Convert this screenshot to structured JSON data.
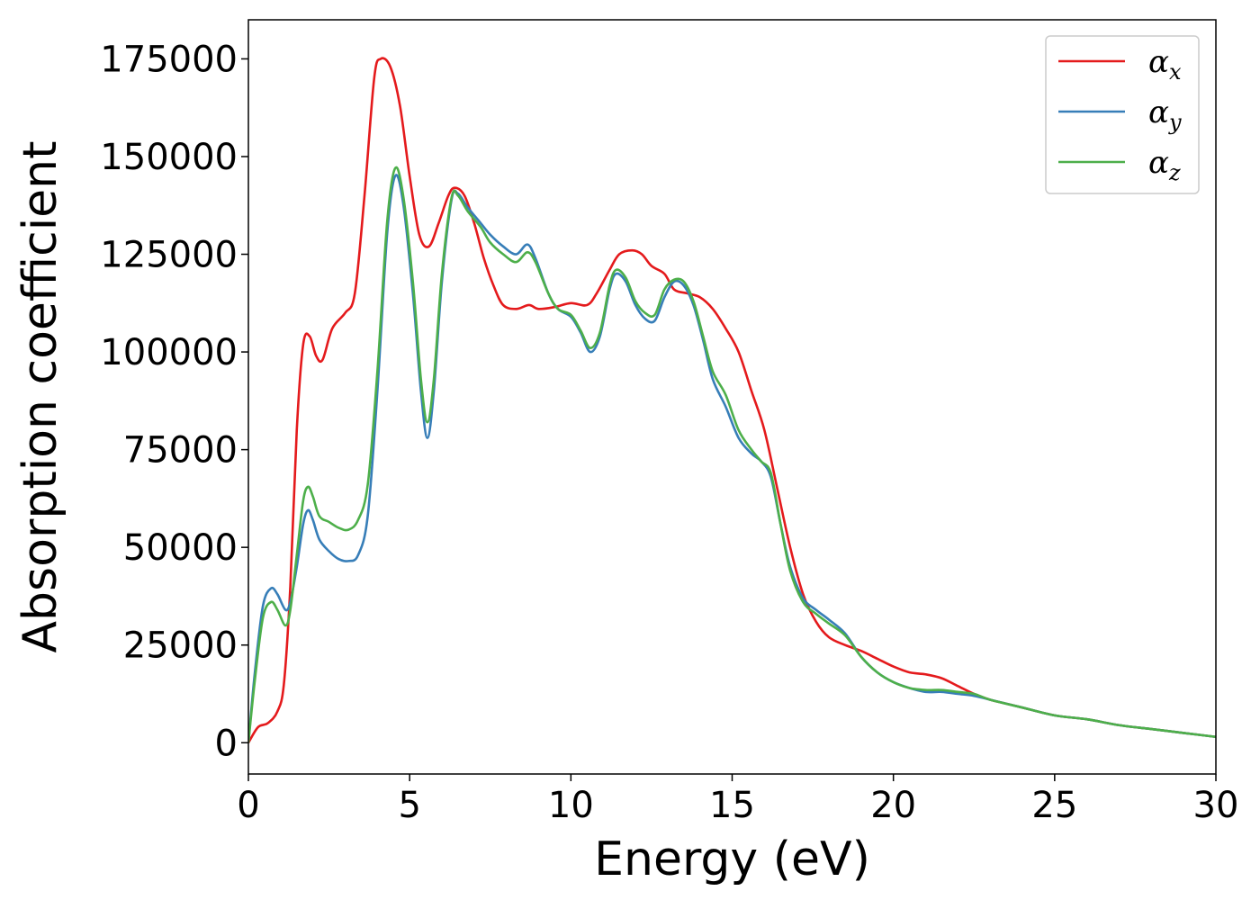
{
  "chart_data": {
    "type": "line",
    "title": "",
    "xlabel": "Energy (eV)",
    "ylabel": "Absorption coefficient",
    "xlim": [
      0,
      30
    ],
    "ylim": [
      -8000,
      185000
    ],
    "xticks": [
      0,
      5,
      10,
      15,
      20,
      25,
      30
    ],
    "yticks": [
      0,
      25000,
      50000,
      75000,
      100000,
      125000,
      150000,
      175000
    ],
    "xtick_labels": [
      "0",
      "5",
      "10",
      "15",
      "20",
      "25",
      "30"
    ],
    "ytick_labels": [
      "0",
      "25000",
      "50000",
      "75000",
      "100000",
      "125000",
      "150000",
      "175000"
    ],
    "grid": false,
    "legend_position": "top-right",
    "series": [
      {
        "name": "α_x",
        "symbol": "α",
        "subscript": "x",
        "color": "#e41a1c",
        "points": [
          [
            0,
            0
          ],
          [
            0.3,
            4000
          ],
          [
            0.6,
            5000
          ],
          [
            0.9,
            8000
          ],
          [
            1.1,
            15000
          ],
          [
            1.3,
            40000
          ],
          [
            1.5,
            80000
          ],
          [
            1.7,
            102000
          ],
          [
            1.9,
            104000
          ],
          [
            2.1,
            99000
          ],
          [
            2.3,
            98000
          ],
          [
            2.6,
            106000
          ],
          [
            3.0,
            110000
          ],
          [
            3.3,
            115000
          ],
          [
            3.6,
            140000
          ],
          [
            3.9,
            170000
          ],
          [
            4.1,
            175000
          ],
          [
            4.4,
            173000
          ],
          [
            4.7,
            163000
          ],
          [
            5.0,
            145000
          ],
          [
            5.3,
            130000
          ],
          [
            5.6,
            127000
          ],
          [
            5.9,
            133000
          ],
          [
            6.2,
            140000
          ],
          [
            6.4,
            142000
          ],
          [
            6.7,
            140000
          ],
          [
            7.0,
            133000
          ],
          [
            7.3,
            124000
          ],
          [
            7.6,
            117000
          ],
          [
            7.9,
            112000
          ],
          [
            8.3,
            111000
          ],
          [
            8.7,
            112000
          ],
          [
            9.0,
            111000
          ],
          [
            9.5,
            111500
          ],
          [
            10.0,
            112500
          ],
          [
            10.5,
            112000
          ],
          [
            10.8,
            115000
          ],
          [
            11.2,
            121000
          ],
          [
            11.5,
            125000
          ],
          [
            11.9,
            126000
          ],
          [
            12.2,
            125000
          ],
          [
            12.5,
            122000
          ],
          [
            12.9,
            120000
          ],
          [
            13.2,
            116000
          ],
          [
            13.6,
            115000
          ],
          [
            14.0,
            114000
          ],
          [
            14.4,
            111000
          ],
          [
            14.8,
            106000
          ],
          [
            15.2,
            100000
          ],
          [
            15.6,
            90000
          ],
          [
            16.0,
            80000
          ],
          [
            16.4,
            65000
          ],
          [
            16.8,
            50000
          ],
          [
            17.2,
            38000
          ],
          [
            17.6,
            31000
          ],
          [
            18.0,
            27000
          ],
          [
            18.5,
            25000
          ],
          [
            19.0,
            23500
          ],
          [
            19.5,
            21500
          ],
          [
            20.0,
            19500
          ],
          [
            20.5,
            18000
          ],
          [
            21.0,
            17500
          ],
          [
            21.5,
            16500
          ],
          [
            22.0,
            14500
          ],
          [
            22.5,
            12500
          ],
          [
            23.0,
            11000
          ],
          [
            23.5,
            10000
          ],
          [
            24.0,
            9000
          ],
          [
            25.0,
            7000
          ],
          [
            26.0,
            6000
          ],
          [
            27.0,
            4500
          ],
          [
            28.0,
            3500
          ],
          [
            29.0,
            2500
          ],
          [
            30.0,
            1500
          ]
        ]
      },
      {
        "name": "α_y",
        "symbol": "α",
        "subscript": "y",
        "color": "#377eb8",
        "points": [
          [
            0,
            0
          ],
          [
            0.2,
            18000
          ],
          [
            0.45,
            35000
          ],
          [
            0.7,
            39500
          ],
          [
            0.9,
            38000
          ],
          [
            1.15,
            34000
          ],
          [
            1.3,
            36000
          ],
          [
            1.5,
            45000
          ],
          [
            1.7,
            56000
          ],
          [
            1.85,
            59500
          ],
          [
            2.0,
            57000
          ],
          [
            2.2,
            52000
          ],
          [
            2.5,
            49000
          ],
          [
            2.8,
            47000
          ],
          [
            3.1,
            46500
          ],
          [
            3.4,
            48000
          ],
          [
            3.7,
            58000
          ],
          [
            4.0,
            90000
          ],
          [
            4.3,
            130000
          ],
          [
            4.55,
            145000
          ],
          [
            4.8,
            138000
          ],
          [
            5.1,
            115000
          ],
          [
            5.35,
            90000
          ],
          [
            5.55,
            78000
          ],
          [
            5.75,
            90000
          ],
          [
            6.0,
            118000
          ],
          [
            6.3,
            139000
          ],
          [
            6.5,
            140500
          ],
          [
            6.8,
            137000
          ],
          [
            7.2,
            133000
          ],
          [
            7.5,
            130000
          ],
          [
            7.9,
            127000
          ],
          [
            8.3,
            125000
          ],
          [
            8.65,
            127500
          ],
          [
            8.9,
            124000
          ],
          [
            9.3,
            115000
          ],
          [
            9.6,
            111000
          ],
          [
            10.0,
            109000
          ],
          [
            10.3,
            105000
          ],
          [
            10.6,
            100000
          ],
          [
            10.9,
            104000
          ],
          [
            11.2,
            116000
          ],
          [
            11.4,
            120000
          ],
          [
            11.7,
            118000
          ],
          [
            12.0,
            112000
          ],
          [
            12.3,
            108500
          ],
          [
            12.6,
            108000
          ],
          [
            12.9,
            114000
          ],
          [
            13.2,
            118000
          ],
          [
            13.5,
            117000
          ],
          [
            13.8,
            112000
          ],
          [
            14.1,
            103000
          ],
          [
            14.4,
            93000
          ],
          [
            14.8,
            86000
          ],
          [
            15.2,
            78000
          ],
          [
            15.6,
            74000
          ],
          [
            15.9,
            72000
          ],
          [
            16.2,
            68000
          ],
          [
            16.5,
            56000
          ],
          [
            16.8,
            45000
          ],
          [
            17.2,
            37000
          ],
          [
            17.6,
            34000
          ],
          [
            18.0,
            31500
          ],
          [
            18.5,
            28000
          ],
          [
            19.0,
            22000
          ],
          [
            19.5,
            18000
          ],
          [
            20.0,
            15500
          ],
          [
            20.5,
            14000
          ],
          [
            21.0,
            13000
          ],
          [
            21.5,
            13000
          ],
          [
            22.0,
            12500
          ],
          [
            22.5,
            12000
          ],
          [
            23.0,
            11000
          ],
          [
            24.0,
            9000
          ],
          [
            25.0,
            7000
          ],
          [
            26.0,
            6000
          ],
          [
            27.0,
            4500
          ],
          [
            28.0,
            3500
          ],
          [
            29.0,
            2500
          ],
          [
            30.0,
            1500
          ]
        ]
      },
      {
        "name": "α_z",
        "symbol": "α",
        "subscript": "z",
        "color": "#4daf4a",
        "points": [
          [
            0,
            0
          ],
          [
            0.2,
            16000
          ],
          [
            0.45,
            32000
          ],
          [
            0.7,
            36000
          ],
          [
            0.9,
            34000
          ],
          [
            1.15,
            30000
          ],
          [
            1.3,
            34000
          ],
          [
            1.5,
            48000
          ],
          [
            1.7,
            62000
          ],
          [
            1.85,
            65500
          ],
          [
            2.0,
            63000
          ],
          [
            2.2,
            58000
          ],
          [
            2.5,
            56500
          ],
          [
            2.8,
            55000
          ],
          [
            3.1,
            54500
          ],
          [
            3.4,
            57000
          ],
          [
            3.7,
            66000
          ],
          [
            4.0,
            95000
          ],
          [
            4.3,
            133000
          ],
          [
            4.55,
            147000
          ],
          [
            4.8,
            140000
          ],
          [
            5.1,
            118000
          ],
          [
            5.35,
            93000
          ],
          [
            5.55,
            82000
          ],
          [
            5.75,
            93000
          ],
          [
            6.0,
            120000
          ],
          [
            6.3,
            139500
          ],
          [
            6.5,
            140000
          ],
          [
            6.8,
            136000
          ],
          [
            7.2,
            132000
          ],
          [
            7.5,
            128000
          ],
          [
            7.9,
            125000
          ],
          [
            8.3,
            123000
          ],
          [
            8.65,
            125500
          ],
          [
            8.9,
            123000
          ],
          [
            9.3,
            115000
          ],
          [
            9.6,
            111000
          ],
          [
            10.0,
            109500
          ],
          [
            10.3,
            105500
          ],
          [
            10.6,
            101000
          ],
          [
            10.9,
            105000
          ],
          [
            11.2,
            117000
          ],
          [
            11.4,
            121000
          ],
          [
            11.7,
            119000
          ],
          [
            12.0,
            113000
          ],
          [
            12.3,
            110000
          ],
          [
            12.6,
            109500
          ],
          [
            12.9,
            116000
          ],
          [
            13.2,
            118500
          ],
          [
            13.5,
            118000
          ],
          [
            13.8,
            113000
          ],
          [
            14.1,
            104000
          ],
          [
            14.4,
            95000
          ],
          [
            14.8,
            89000
          ],
          [
            15.2,
            80000
          ],
          [
            15.6,
            75000
          ],
          [
            15.9,
            72000
          ],
          [
            16.2,
            69000
          ],
          [
            16.5,
            56000
          ],
          [
            16.8,
            44000
          ],
          [
            17.2,
            36000
          ],
          [
            17.6,
            33000
          ],
          [
            18.0,
            30500
          ],
          [
            18.5,
            27500
          ],
          [
            19.0,
            22000
          ],
          [
            19.5,
            18000
          ],
          [
            20.0,
            15500
          ],
          [
            20.5,
            14000
          ],
          [
            21.0,
            13500
          ],
          [
            21.5,
            13500
          ],
          [
            22.0,
            13000
          ],
          [
            22.5,
            12500
          ],
          [
            23.0,
            11000
          ],
          [
            24.0,
            9000
          ],
          [
            25.0,
            7000
          ],
          [
            26.0,
            6000
          ],
          [
            27.0,
            4500
          ],
          [
            28.0,
            3500
          ],
          [
            29.0,
            2500
          ],
          [
            30.0,
            1500
          ]
        ]
      }
    ]
  }
}
